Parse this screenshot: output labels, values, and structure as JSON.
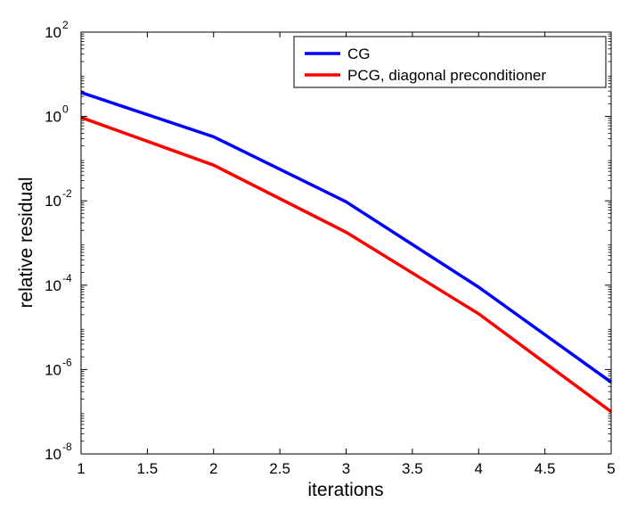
{
  "chart_data": {
    "type": "line",
    "title": "",
    "xlabel": "iterations",
    "ylabel": "relative residual",
    "xlim": [
      1,
      5
    ],
    "ylim": [
      1e-08,
      100
    ],
    "yscale": "log",
    "xticks": [
      "1",
      "1.5",
      "2",
      "2.5",
      "3",
      "3.5",
      "4",
      "4.5",
      "5"
    ],
    "ytick_base": "10",
    "ytick_exponents": [
      "2",
      "0",
      "-2",
      "-4",
      "-6",
      "-8"
    ],
    "grid": false,
    "legend_position": "top-right",
    "x": [
      1,
      2,
      3,
      4,
      5
    ],
    "series": [
      {
        "name": "CG",
        "color": "#0000ff",
        "values": [
          3.7,
          0.33,
          0.0095,
          9e-05,
          5e-07
        ]
      },
      {
        "name": "PCG, diagonal preconditioner",
        "color": "#ff0000",
        "values": [
          0.95,
          0.07,
          0.0018,
          2.1e-05,
          1e-07
        ]
      }
    ]
  }
}
